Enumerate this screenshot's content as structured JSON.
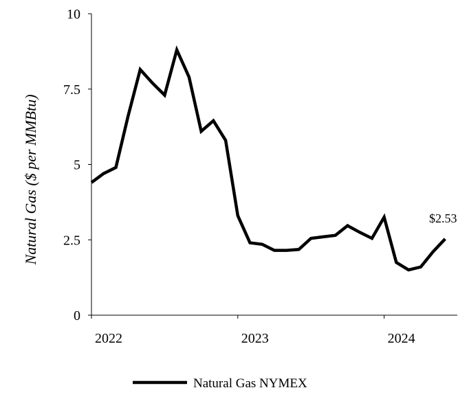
{
  "chart_data": {
    "type": "line",
    "title": "",
    "xlabel": "",
    "ylabel": "Natural Gas ($ per MMBtu)",
    "ylim": [
      0,
      10
    ],
    "yticks": [
      "0",
      "2.5",
      "5",
      "7.5",
      "10"
    ],
    "xticks": [
      {
        "label": "2022",
        "at": 0
      },
      {
        "label": "2023",
        "at": 12
      },
      {
        "label": "2024",
        "at": 24
      }
    ],
    "series": [
      {
        "name": "Natural Gas NYMEX",
        "color": "#000000",
        "x": [
          0,
          1,
          2,
          3,
          4,
          5,
          6,
          7,
          8,
          9,
          10,
          11,
          12,
          13,
          14,
          15,
          16,
          17,
          18,
          19,
          20,
          21,
          22,
          23,
          24,
          25,
          26,
          27,
          28,
          29
        ],
        "values": [
          4.4,
          4.7,
          4.9,
          6.6,
          8.15,
          7.7,
          7.3,
          8.8,
          7.9,
          6.1,
          6.45,
          5.8,
          3.3,
          2.4,
          2.35,
          2.15,
          2.15,
          2.18,
          2.55,
          2.6,
          2.65,
          2.97,
          2.75,
          2.55,
          3.25,
          1.75,
          1.5,
          1.6,
          2.1,
          2.53
        ]
      }
    ],
    "annotation": {
      "text": "$2.53",
      "x": 29,
      "y": 2.53
    },
    "legend": "bottom-center"
  }
}
